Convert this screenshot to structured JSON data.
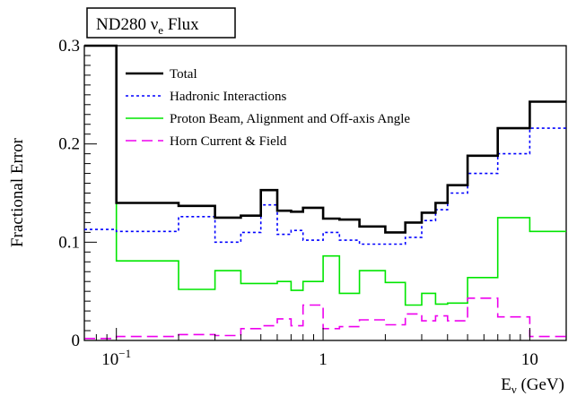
{
  "title": {
    "main": "ND280 ",
    "nu": "ν",
    "sub": "e",
    "rest": " Flux"
  },
  "chart_data": {
    "type": "line",
    "step": true,
    "xscale": "log",
    "xlim": [
      0.07,
      15
    ],
    "ylim": [
      0,
      0.3
    ],
    "xlabel": {
      "main": "E",
      "nu": "ν",
      "rest": " (GeV)"
    },
    "ylabel": "Fractional Error",
    "xticks": [
      {
        "value": 0.1,
        "base": "10",
        "exp": "−1"
      },
      {
        "value": 1,
        "base": "1",
        "exp": ""
      },
      {
        "value": 10,
        "base": "10",
        "exp": ""
      }
    ],
    "yticks": [
      {
        "value": 0,
        "label": "0"
      },
      {
        "value": 0.1,
        "label": "0.1"
      },
      {
        "value": 0.2,
        "label": "0.2"
      },
      {
        "value": 0.3,
        "label": "0.3"
      }
    ],
    "edges": [
      0.07,
      0.1,
      0.2,
      0.3,
      0.4,
      0.5,
      0.6,
      0.7,
      0.8,
      1.0,
      1.2,
      1.5,
      2.0,
      2.5,
      3.0,
      3.5,
      4.0,
      5.0,
      7.0,
      10.0,
      15.0
    ],
    "series": [
      {
        "name": "Total",
        "color": "#000000",
        "dash": "",
        "width": 2.6,
        "values": [
          0.3,
          0.14,
          0.137,
          0.125,
          0.127,
          0.153,
          0.132,
          0.131,
          0.135,
          0.124,
          0.123,
          0.116,
          0.11,
          0.12,
          0.13,
          0.14,
          0.158,
          0.188,
          0.216,
          0.243
        ]
      },
      {
        "name": "Hadronic Interactions",
        "color": "#0000ff",
        "dash": "3,3",
        "width": 1.6,
        "values": [
          0.113,
          0.111,
          0.126,
          0.1,
          0.11,
          0.138,
          0.108,
          0.112,
          0.102,
          0.11,
          0.102,
          0.098,
          0.098,
          0.105,
          0.122,
          0.133,
          0.15,
          0.17,
          0.19,
          0.216
        ]
      },
      {
        "name": "Proton Beam, Alignment and Off-axis Angle",
        "color": "#00e600",
        "dash": "",
        "width": 1.6,
        "values": [
          0.3,
          0.081,
          0.052,
          0.071,
          0.058,
          0.058,
          0.06,
          0.051,
          0.06,
          0.086,
          0.048,
          0.071,
          0.059,
          0.036,
          0.048,
          0.037,
          0.038,
          0.064,
          0.125,
          0.111
        ]
      },
      {
        "name": "Horn Current & Field",
        "color": "#ee00ee",
        "dash": "12,6",
        "width": 1.6,
        "values": [
          0.002,
          0.004,
          0.006,
          0.005,
          0.012,
          0.015,
          0.022,
          0.015,
          0.036,
          0.012,
          0.014,
          0.021,
          0.016,
          0.027,
          0.02,
          0.025,
          0.02,
          0.043,
          0.024,
          0.004
        ]
      }
    ]
  }
}
